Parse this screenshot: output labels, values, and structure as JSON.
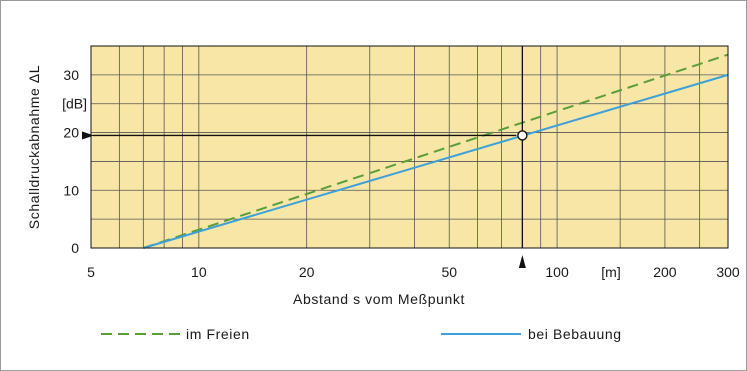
{
  "chart_data": {
    "type": "line",
    "xlabel": "Abstand s vom Meßpunkt",
    "ylabel": "Schalldruckabnahme ΔL",
    "x_scale": "log",
    "xlim": [
      5,
      300
    ],
    "ylim": [
      0,
      35
    ],
    "x_ticks": [
      {
        "value": 5,
        "label": "5"
      },
      {
        "value": 10,
        "label": "10"
      },
      {
        "value": 20,
        "label": "20"
      },
      {
        "value": 50,
        "label": "50"
      },
      {
        "value": 100,
        "label": "100"
      },
      {
        "value": 200,
        "label": "200"
      },
      {
        "value": 300,
        "label": "300"
      }
    ],
    "x_unit_label": "[m]",
    "y_ticks": [
      {
        "value": 0,
        "label": "0"
      },
      {
        "value": 10,
        "label": "10"
      },
      {
        "value": 20,
        "label": "20"
      },
      {
        "value": 30,
        "label": "30"
      }
    ],
    "y_unit_label": "[dB]",
    "grid": true,
    "legend_position": "bottom",
    "series": [
      {
        "name": "im Freien",
        "style": "dashed",
        "color": "#5a9e3a",
        "x": [
          7,
          300
        ],
        "y": [
          0,
          33.5
        ]
      },
      {
        "name": "bei Bebauung",
        "style": "solid",
        "color": "#3ea0d8",
        "x": [
          7,
          300
        ],
        "y": [
          0,
          30
        ]
      }
    ],
    "annotation": {
      "x": 80,
      "y": 19.5,
      "note": "reading arrow from x=80 m to ΔL≈19.5 dB"
    },
    "colors": {
      "plot_background": "#f8e6a6",
      "grid": "#555555",
      "axes": "#111111"
    }
  }
}
